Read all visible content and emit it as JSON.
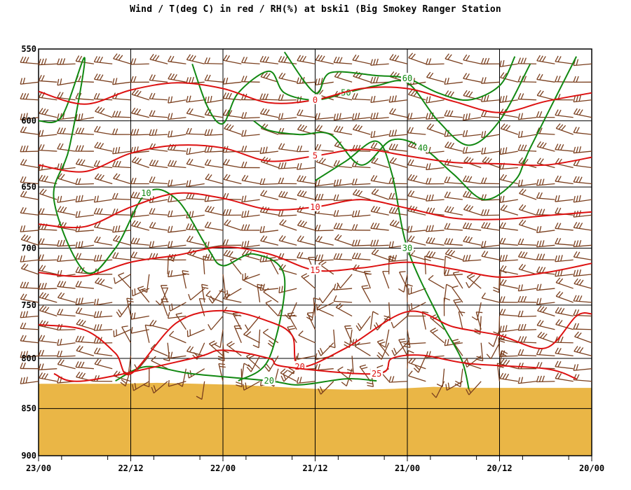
{
  "chart_data": {
    "type": "line",
    "title": "Wind / T(deg C) in red / RH(%) at bski1 (Big Smokey Ranger Station",
    "y_axis": {
      "scale": "log",
      "unit": "hPa",
      "reversed": true,
      "range": [
        900,
        550
      ],
      "tick_labels": [
        "550",
        "600",
        "650",
        "700",
        "750",
        "800",
        "850",
        "900"
      ]
    },
    "x_axis": {
      "range_hours": [
        0,
        72
      ],
      "reversed_time": true,
      "tick_labels": [
        "23/00",
        "22/12",
        "22/00",
        "21/12",
        "21/00",
        "20/12",
        "20/00"
      ],
      "tick_positions_hours": [
        0,
        12,
        24,
        36,
        48,
        60,
        72
      ]
    },
    "grid": true,
    "colors": {
      "temperature": "#dd1111",
      "rh": "#118811",
      "wind_barbs": "#7a3f1e",
      "terrain": "#eab646"
    },
    "terrain_pressure": [
      825,
      825,
      825,
      824,
      825,
      826,
      828,
      830,
      831,
      830,
      828,
      829,
      829,
      829,
      829
    ],
    "temperature_isotherms": [
      {
        "label": "0",
        "points": [
          [
            0,
            579
          ],
          [
            6,
            588
          ],
          [
            12,
            578
          ],
          [
            18,
            573
          ],
          [
            24,
            577
          ],
          [
            30,
            587
          ],
          [
            36,
            585
          ],
          [
            42,
            577
          ],
          [
            48,
            577
          ],
          [
            54,
            586
          ],
          [
            60,
            594
          ],
          [
            66,
            586
          ],
          [
            72,
            580
          ]
        ]
      },
      {
        "label": "5",
        "points": [
          [
            0,
            633
          ],
          [
            6,
            638
          ],
          [
            12,
            624
          ],
          [
            18,
            618
          ],
          [
            24,
            620
          ],
          [
            30,
            630
          ],
          [
            36,
            626
          ],
          [
            42,
            621
          ],
          [
            48,
            626
          ],
          [
            54,
            631
          ],
          [
            60,
            632
          ],
          [
            66,
            633
          ],
          [
            72,
            627
          ]
        ]
      },
      {
        "label": "10",
        "points": [
          [
            0,
            680
          ],
          [
            6,
            682
          ],
          [
            12,
            666
          ],
          [
            18,
            655
          ],
          [
            24,
            659
          ],
          [
            30,
            668
          ],
          [
            36,
            666
          ],
          [
            42,
            660
          ],
          [
            48,
            667
          ],
          [
            54,
            675
          ],
          [
            60,
            676
          ],
          [
            66,
            673
          ],
          [
            72,
            670
          ]
        ]
      },
      {
        "label": "15",
        "points": [
          [
            0,
            721
          ],
          [
            6,
            724
          ],
          [
            12,
            712
          ],
          [
            18,
            706
          ],
          [
            24,
            699
          ],
          [
            30,
            705
          ],
          [
            36,
            719
          ],
          [
            42,
            717
          ],
          [
            48,
            712
          ],
          [
            54,
            718
          ],
          [
            60,
            725
          ],
          [
            66,
            721
          ],
          [
            72,
            713
          ]
        ]
      },
      {
        "label": "20",
        "points": [
          [
            0,
            768
          ],
          [
            6,
            773
          ],
          [
            10,
            795
          ],
          [
            12,
            815
          ],
          [
            18,
            766
          ],
          [
            24,
            755
          ],
          [
            30,
            765
          ],
          [
            33,
            778
          ],
          [
            34,
            808
          ],
          [
            40,
            790
          ],
          [
            48,
            756
          ],
          [
            54,
            770
          ],
          [
            60,
            778
          ],
          [
            66,
            790
          ],
          [
            70,
            760
          ],
          [
            72,
            758
          ]
        ]
      },
      {
        "label": "25",
        "points": [
          [
            2,
            815
          ],
          [
            6,
            822
          ],
          [
            20,
            800
          ],
          [
            24,
            792
          ],
          [
            30,
            800
          ],
          [
            32,
            808
          ],
          [
            44,
            815
          ],
          [
            46,
            800
          ],
          [
            50,
            797
          ],
          [
            56,
            805
          ],
          [
            66,
            810
          ],
          [
            70,
            820
          ]
        ]
      }
    ],
    "rh_contours": [
      {
        "label": "10",
        "points": [
          [
            0,
            600
          ],
          [
            3,
            597
          ],
          [
            6,
            556
          ],
          [
            4,
            620
          ],
          [
            2,
            660
          ],
          [
            6,
            720
          ],
          [
            10,
            700
          ],
          [
            14,
            655
          ],
          [
            18,
            660
          ],
          [
            22,
            700
          ],
          [
            24,
            715
          ],
          [
            28,
            705
          ],
          [
            32,
            725
          ],
          [
            30,
            800
          ],
          [
            26,
            822
          ]
        ]
      },
      {
        "label": "20",
        "points": [
          [
            10,
            822
          ],
          [
            14,
            808
          ],
          [
            20,
            815
          ],
          [
            30,
            822
          ],
          [
            34,
            826
          ],
          [
            40,
            820
          ],
          [
            44,
            822
          ]
        ]
      },
      {
        "label": "30",
        "points": [
          [
            36,
            645
          ],
          [
            40,
            630
          ],
          [
            44,
            615
          ],
          [
            46,
            640
          ],
          [
            48,
            700
          ],
          [
            52,
            760
          ],
          [
            55,
            800
          ],
          [
            56,
            830
          ]
        ]
      },
      {
        "label": "40",
        "points": [
          [
            28,
            600
          ],
          [
            30,
            607
          ],
          [
            34,
            610
          ],
          [
            38,
            610
          ],
          [
            42,
            633
          ],
          [
            46,
            614
          ],
          [
            50,
            620
          ],
          [
            54,
            640
          ],
          [
            58,
            660
          ],
          [
            62,
            645
          ],
          [
            64,
            620
          ],
          [
            70,
            555
          ]
        ]
      },
      {
        "label": "50",
        "points": [
          [
            20,
            560
          ],
          [
            22,
            590
          ],
          [
            24,
            602
          ],
          [
            26,
            580
          ],
          [
            30,
            565
          ],
          [
            32,
            580
          ],
          [
            36,
            585
          ],
          [
            40,
            580
          ],
          [
            44,
            575
          ],
          [
            48,
            573
          ],
          [
            52,
            600
          ],
          [
            56,
            618
          ],
          [
            60,
            600
          ],
          [
            64,
            560
          ]
        ]
      },
      {
        "label": "60",
        "points": [
          [
            32,
            552
          ],
          [
            36,
            580
          ],
          [
            38,
            566
          ],
          [
            44,
            568
          ],
          [
            48,
            570
          ],
          [
            52,
            580
          ],
          [
            56,
            585
          ],
          [
            60,
            575
          ],
          [
            62,
            555
          ]
        ]
      }
    ]
  }
}
